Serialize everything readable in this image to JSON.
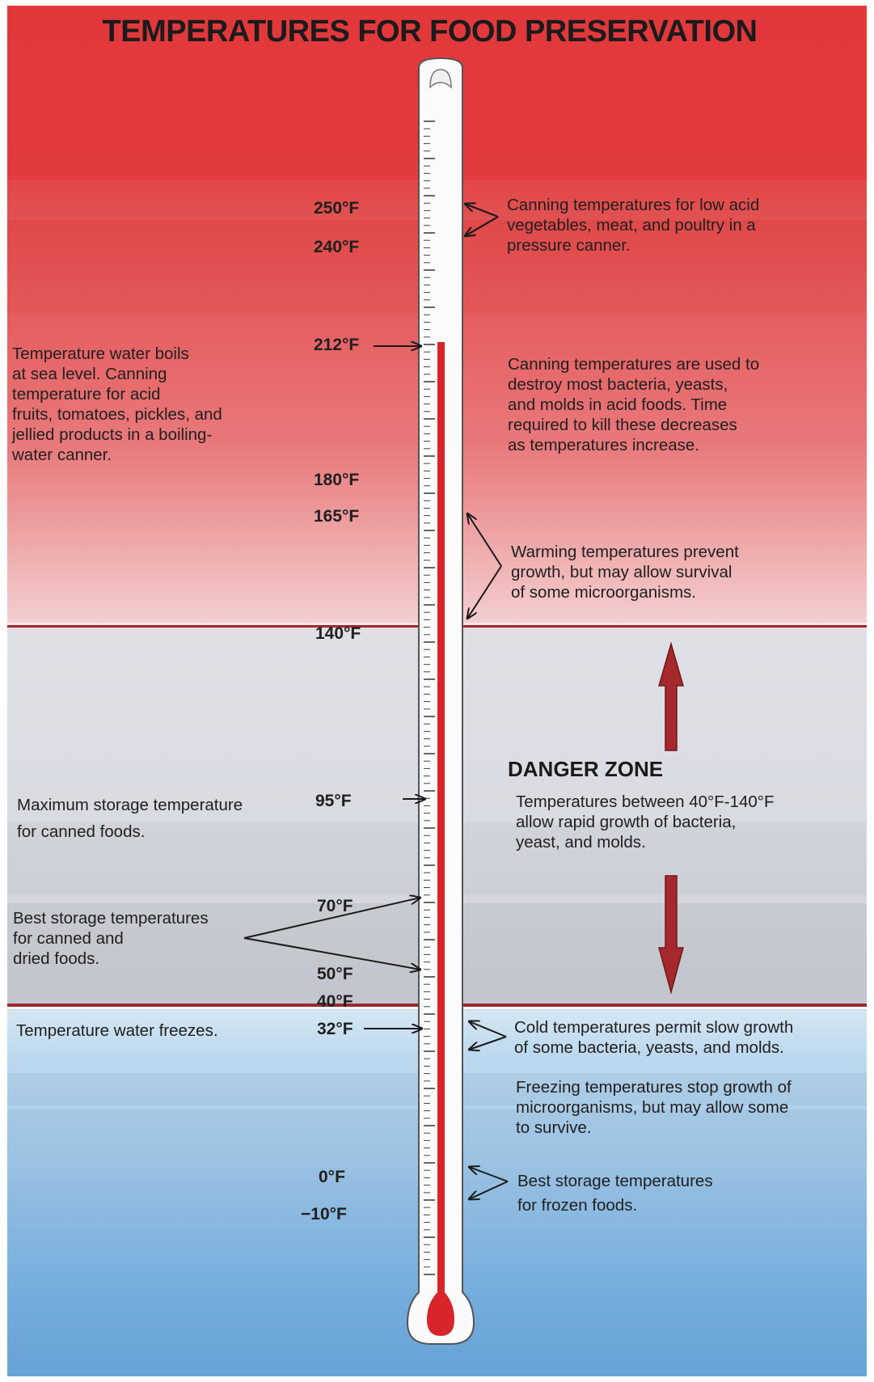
{
  "title": "TEMPERATURES FOR FOOD PRESERVATION",
  "temperature_marks": [
    {
      "label": "250°F",
      "value": 250
    },
    {
      "label": "240°F",
      "value": 240
    },
    {
      "label": "212°F",
      "value": 212
    },
    {
      "label": "180°F",
      "value": 180
    },
    {
      "label": "165°F",
      "value": 165
    },
    {
      "label": "140°F",
      "value": 140
    },
    {
      "label": "95°F",
      "value": 95
    },
    {
      "label": "70°F",
      "value": 70
    },
    {
      "label": "50°F",
      "value": 50
    },
    {
      "label": "40°F",
      "value": 40
    },
    {
      "label": "32°F",
      "value": 32
    },
    {
      "label": "0°F",
      "value": 0
    },
    {
      "label": "−10°F",
      "value": -10
    }
  ],
  "left_notes": {
    "boiling": "Temperature water boils\nat sea level. Canning\ntemperature for acid\nfruits, tomatoes, pickles, and\njellied products in a boiling-\nwater canner.",
    "max_storage": "Maximum storage temperature\nfor canned foods.",
    "best_storage_canned": "Best storage temperatures\nfor canned and\ndried foods.",
    "freezes": "Temperature water freezes."
  },
  "right_notes": {
    "pressure_canning": "Canning temperatures for low acid\nvegetables, meat, and poultry in a\npressure canner.",
    "acid_canning": "Canning temperatures are used to\ndestroy most bacteria, yeasts,\nand molds in acid foods. Time\nrequired to kill these decreases\nas temperatures increase.",
    "warming": "Warming temperatures prevent\ngrowth, but may allow survival\nof some microorganisms.",
    "danger_title": "DANGER ZONE",
    "danger_text": "Temperatures between 40°F-140°F\nallow rapid growth of bacteria,\nyeast, and molds.",
    "cold": "Cold temperatures permit slow growth\nof some bacteria, yeasts, and molds.",
    "freezing": "Freezing temperatures stop growth of\nmicroorganisms, but may allow some\nto survive.",
    "frozen_storage": "Best storage temperatures\nfor frozen foods."
  },
  "colors": {
    "hot_red": "#e2383b",
    "danger_gray": "#d9dbe2",
    "cold_blue": "#6ea9dc",
    "mercury": "#d8242a",
    "arrow_dark_red": "#a5282c"
  }
}
